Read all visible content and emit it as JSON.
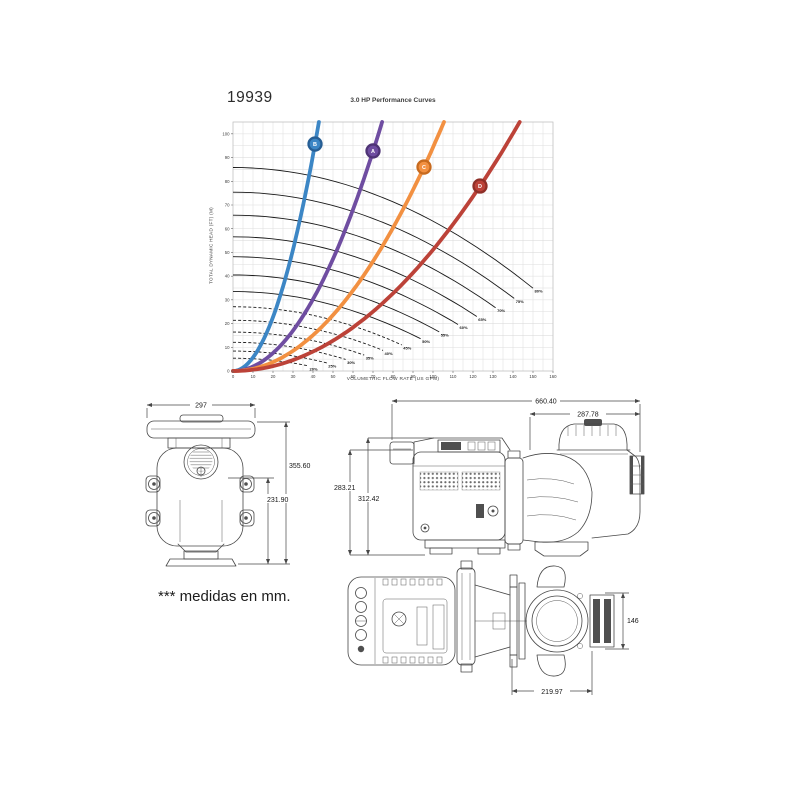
{
  "header": {
    "part_number": "19939"
  },
  "note": "*** medidas en mm.",
  "chart_data": {
    "type": "line",
    "title": "3.0 HP Performance Curves",
    "xlabel": "VOLUMETRIC FLOW RATE (US GPM)",
    "ylabel": "TOTAL DYNAMIC HEAD (FT) (M)",
    "xlim": [
      0,
      160
    ],
    "ylim": [
      0,
      105
    ],
    "tick_step": 10,
    "grid_step": 5,
    "y_tick_max": 100,
    "grid_on": true,
    "colors": {
      "grid": "#dedede",
      "border": "#c4c4c4",
      "speed_curve": "#1a1a1a",
      "tick_text": "#3c3c3c"
    },
    "system_curves": [
      {
        "label": "B",
        "coeff": 0.0569,
        "marker": [
          41,
          95.7
        ],
        "color": "#3c86c5",
        "ring": "#265e94"
      },
      {
        "label": "A",
        "coeff": 0.0189,
        "marker": [
          70,
          92.8
        ],
        "color": "#6f4da1",
        "ring": "#4e3375"
      },
      {
        "label": "C",
        "coeff": 0.00943,
        "marker": [
          95.5,
          86
        ],
        "color": "#f29041",
        "ring": "#c76a1e"
      },
      {
        "label": "D",
        "coeff": 0.00511,
        "marker": [
          123.5,
          78
        ],
        "color": "#bc4238",
        "ring": "#8e2f27"
      }
    ],
    "speed_curves": [
      {
        "pct": "80%",
        "shutoff": 85.8,
        "end": [
          150.0,
          34.9
        ],
        "dashed": false
      },
      {
        "pct": "75%",
        "shutoff": 75.4,
        "end": [
          140.6,
          30.6
        ],
        "dashed": false
      },
      {
        "pct": "70%",
        "shutoff": 65.7,
        "end": [
          131.3,
          26.7
        ],
        "dashed": false
      },
      {
        "pct": "65%",
        "shutoff": 56.6,
        "end": [
          121.9,
          23.0
        ],
        "dashed": false
      },
      {
        "pct": "60%",
        "shutoff": 48.2,
        "end": [
          112.5,
          19.6
        ],
        "dashed": false
      },
      {
        "pct": "55%",
        "shutoff": 40.5,
        "end": [
          103.1,
          16.5
        ],
        "dashed": false
      },
      {
        "pct": "50%",
        "shutoff": 33.5,
        "end": [
          93.8,
          13.6
        ],
        "dashed": false
      },
      {
        "pct": "45%",
        "shutoff": 27.1,
        "end": [
          84.4,
          11.0
        ],
        "dashed": true
      },
      {
        "pct": "40%",
        "shutoff": 21.4,
        "end": [
          75.0,
          8.7
        ],
        "dashed": true
      },
      {
        "pct": "35%",
        "shutoff": 16.4,
        "end": [
          65.6,
          6.7
        ],
        "dashed": true
      },
      {
        "pct": "30%",
        "shutoff": 12.1,
        "end": [
          56.3,
          4.9
        ],
        "dashed": true
      },
      {
        "pct": "25%",
        "shutoff": 8.4,
        "end": [
          46.9,
          3.4
        ],
        "dashed": true
      },
      {
        "pct": "20%",
        "shutoff": 5.4,
        "end": [
          37.5,
          2.2
        ],
        "dashed": true
      }
    ]
  },
  "drawings": {
    "front": {
      "dim_width": "297",
      "dim_height_total": "355.60",
      "dim_height_center": "231.90"
    },
    "side": {
      "dim_length": "660.40",
      "dim_wet_end": "287.78",
      "dim_height_outer": "283.21",
      "dim_height_inner": "312.42"
    },
    "bottom": {
      "dim_port": "146",
      "dim_span": "219.97"
    }
  }
}
